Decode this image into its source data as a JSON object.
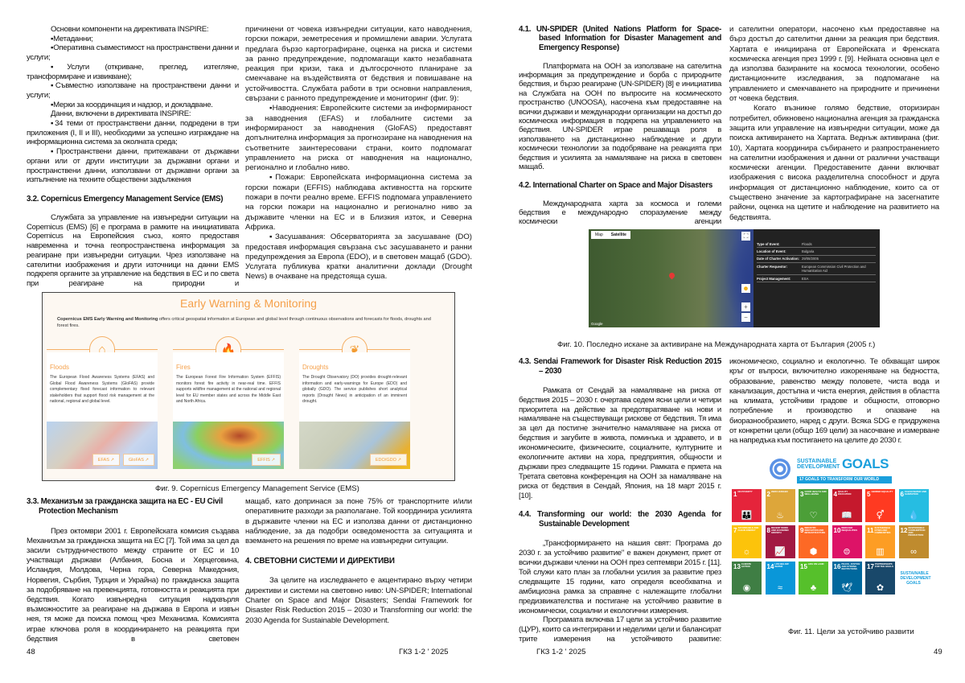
{
  "left_page": {
    "col1_top": [
      {
        "t": "Основни компоненти на директивата INSPIRE:"
      },
      {
        "t": "▪Метаданни;"
      },
      {
        "t": "▪Оперативна съвместимост на пространствени данни и услуги;"
      },
      {
        "t": "▪Услуги (откриване, преглед, изтегляне, трансформиране и извикване);"
      },
      {
        "t": "▪Съвместно използване на пространствени данни и услуги;"
      },
      {
        "t": "▪Мерки за координация и надзор, и докладване."
      },
      {
        "t": "Данни, включени в директивата INSPIRE:"
      },
      {
        "t": "▪34 теми от пространствени данни, подредени в три приложения (I, II и III), необходими за успешно изграждане на информационна система за околната среда;"
      },
      {
        "t": "▪Пространствени данни, притежавани от държавни органи или от други институции за държавни органи и пространствени данни, използвани от държавни органи за изпълнение на техните обществени задължения"
      }
    ],
    "h32": "3.2. Copernicus Emergency Management Service (EMS)",
    "p32": "Службата за управление на извънредни ситуации на Copernicus (EMS) [6] е програма в рамките на инициативата Copernicus на Европейския съюз, която предоставя навременна и точна геопространствена информация за реагиране при извънредни ситуации. Чрез използване на сателитни изображения и други източници на данни EMS подкрепя органите за управление на бедствия в ЕС и по света при реагиране на природни и",
    "col2_top": [
      "причинени от човека извънредни ситуации, като наводнения, горски пожари, земетресения и промишлени аварии. Услугата предлага бързо картографиране, оценка на риска и системи за ранно предупреждение, подпомагащи както незабавната реакция при кризи, така и дългосрочното планиране за смекчаване на въздействията от бедствия и повишаване на устойчивостта. Службата работи в три основни направления, свързани с ранното предупреждение и мониторинг (фиг. 9):",
      "▪Наводнения: Европейските системи за информираност за наводнения (EFAS) и глобалните системи за информираност за наводнения (GloFAS) предоставят допълнителна информация за прогнозиране на наводнения на съответните заинтересовани страни, които подпомагат управлението на риска от наводнения на национално, регионално и глобално ниво.",
      "▪Пожари: Европейската информационна система за горски пожари (EFFIS) наблюдава активността на горските пожари в почти реално време. EFFIS подпомага управлението на горски пожари на национално и регионално ниво за държавите членки на ЕС и в Близкия изток, и Северна Африка.",
      "▪Засушавания: Обсерваторията за засушаване (DO) предоставя информация свързана със засушаването и ранни предупреждения за Европа (EDO), и в световен мащаб (GDO). Услугата публикува кратки аналитични доклади (Drought News) в очакване на предстояща суша."
    ],
    "fig9": {
      "title": "Early Warning & Monitoring",
      "intro_bold": "Copernicus EMS Early Warning and Monitoring",
      "intro": " offers critical geospatial information at European and global level through continuous observations and forecasts for floods, droughts and forest fires.",
      "cards": [
        {
          "title": "Floods",
          "icon": "flood-house-icon",
          "text": "The European Flood Awareness Systems (EFAS) and Global Flood Awareness Systems (GloFAS) provide complementary flood forecast information to relevant stakeholders that support flood risk management at the national, regional and global level.",
          "buttons": [
            "EFAS ↗",
            "GloFAS ↗"
          ]
        },
        {
          "title": "Fires",
          "icon": "fire-icon",
          "text": "The European Forest Fire Information System (EFFIS) monitors forest fire activity in near-real time. EFFIS supports wildfire management at the national and regional level for EU member states and across the Middle East and North Africa.",
          "buttons": [
            "EFFIS ↗"
          ]
        },
        {
          "title": "Droughts",
          "icon": "drought-plant-icon",
          "text": "The Drought Observatory (DO) provides drought-relevant information and early-warnings for Europe (EDO) and globally (GDO). The service publishes short analytical reports (Drought News) in anticipation of an imminent drought.",
          "buttons": [
            "EDO/GDO ↗"
          ]
        }
      ],
      "accent": "#f5a04a",
      "caption": "Фиг. 9. Copernicus Emergency Management Service (EMS)"
    },
    "h33": "3.3. Механизъм за гражданска защита на ЕС - EU Civil Protection Mechanism",
    "p33": "През октомври 2001 г. Европейската комисия създава Механизъм за гражданска защита на ЕС [7]. Той има за цел да засили сътрудничеството между страните от ЕС и 10 участващи държави (Албания, Босна и Херцеговина, Исландия, Молдова, Черна гора, Северна Македония, Норвегия, Сърбия, Турция и Украйна) по гражданска защита за подобряване на превенцията, готовността и реакцията при бедствия. Когато извънредна ситуация надхвърля възможностите за реагиране на държава в Европа и извън нея, тя може да поиска помощ чрез Механизма. Комисията играе ключова роля в координирането на реакцията при бедствия в световен",
    "p33b": "мащаб, като допринася за поне 75% от транспортните и/или оперативните разходи за разполагане. Той координира усилията в държавите членки на ЕС и използва данни от дистанционно наблюдение, за да подобри осведомеността за ситуацията и вземането на решения по време на извънредни ситуации.",
    "h4": "4. СВЕТОВНИ СИСТЕМИ И ДИРЕКТИВИ",
    "p4": "За целите на изследването е акцентирано върху четири директиви и системи на световно ниво: UN-SPIDER; International Charter on Space and Major Disasters; Sendai Framework for Disaster Risk Reduction 2015 – 2030 и Transforming our world: the 2030 Agenda for Sustainable Development.",
    "page_number": "48",
    "journal": "ГКЗ 1-2 ' 2025"
  },
  "right_page": {
    "h41": "4.1. UN-SPIDER (United Nations Platform for Space-based Information for Disaster Management and Emergency Response)",
    "p41": "Платформата на ООН за използване на сателитна информация за предупреждение и борба с природните бедствия, и бързо реагиране (UN-SPIDER) [8] е инициатива на Службата на ООН по въпросите на космическото пространство (UNOOSA), насочена към предоставяне на всички държави и международни организации на достъп до космическа информация в подкрепа на управлението на бедствия. UN-SPIDER играе решаваща роля в използването на дистанционно наблюдение и други космически технологии за подобряване на реакцията при бедствия и усилията за намаляване на риска в световен мащаб.",
    "h42": "4.2. International Charter on Space and Major Disasters",
    "p42": "Международната харта за космоса и големи бедствия е международно споразумение между космически агенции",
    "col2_top": [
      "и сателитни оператори, насочено към предоставяне на бърз достъп до сателитни данни за реакция при бедствия. Хартата е инициирана от Европейската и Френската космическа агенция през 1999 г. [9]. Нейната основна цел е да използва базираните на космоса технологии, особено дистанционните изследвания, за подпомагане на управлението и смекчаването на природните и причинени от човека бедствия.",
      "Когато възникне голямо бедствие, оторизиран потребител, обикновено национална агенция за гражданска защита или управление на извънредни ситуации, може да поиска активирането на Хартата. Веднъж активирана (фиг. 10), Хартата координира събирането и разпространението на сателитни изображения и данни от различни участващи космически агенции. Предоставените данни включват изображения с висока разделителна способност и друга информация от дистанционно наблюдение, които са от съществено значение за картографиране на засегнатите райони, оценка на щетите и наблюдение на развитието на бедствията."
    ],
    "fig10": {
      "map_tabs": [
        "Map",
        "Satellite"
      ],
      "map_credit": "Google",
      "info": [
        {
          "k": "Type of Event:",
          "v": "Floods"
        },
        {
          "k": "Location of Event:",
          "v": "Bulgaria"
        },
        {
          "k": "Date of Charter Activation:",
          "v": "29/08/2005"
        },
        {
          "k": "Charter Requestor:",
          "v": "European Commission Civil Protection and Humanitarian Aid"
        },
        {
          "k": "Project Management:",
          "v": "ESA"
        }
      ],
      "caption": "Фиг. 10. Последно искане за активиране на Международната харта от България (2005 г.)"
    },
    "h43": "4.3. Sendai Framework for Disaster Risk Reduction 2015 – 2030",
    "p43": "Рамката от Сендай за намаляване на риска от бедствия 2015 – 2030 г. очертава седем ясни цели и четири приоритета на действие за предотвратяване на нови и намаляване на съществуващи рискове от бедствия. Тя има за цел да постигне значително намаляване на риска от бедствия и загубите в живота, поминъка и здравето, и в икономическите, физическите, социалните, културните и екологичните активи на хора, предприятия, общности и държави през следващите 15 години. Рамката е приета на Третата световна конференция на ООН за намаляване на риска от бедствия в Сендай, Япония, на 18 март 2015 г. [10].",
    "h44": "4.4. Transforming our world: the 2030 Agenda for Sustainable Development",
    "p44": "„Трансформирането на нашия свят: Програма до 2030 г. за устойчиво развитие\" е важен документ, приет от всички държави членки на ООН през септември 2015 г. [11]. Той служи като план за глобални усилия за развитие през следващите 15 години, като определя всеобхватна и амбициозна рамка за справяне с належащите глобални предизвикателства и постигане на устойчиво развитие в икономически, социални и екологични измерения.",
    "p44b": "Програмата включва 17 цели за устойчиво развитие (ЦУР), които са интегрирани и неделими цели и балансират трите измерения на устойчивото развитие:",
    "p44c": "икономическо, социално и екологично. Те обхващат широк кръг от въпроси, включително изкореняване на бедността, образование, равенство между половете, чиста вода и канализация, достъпна и чиста енергия, действия в областта на климата, устойчиви градове и общности, отговорно потребление и производство и опазване на биоразнообразието, наред с други. Всяка SDG е придружена от конкретни цели (общо 169 цели) за насочване и измерване на напредъка към постигането на целите до 2030 г.",
    "sdg": {
      "title": "SUSTAINABLE DEVELOPMENT",
      "goals_word": "GOALS",
      "banner": "17 GOALS TO TRANSFORM OUR WORLD",
      "tiles": [
        {
          "n": "1",
          "l": "NO POVERTY",
          "c": "#E5243B",
          "g": "👪"
        },
        {
          "n": "2",
          "l": "ZERO HUNGER",
          "c": "#DDA63A",
          "g": "♨"
        },
        {
          "n": "3",
          "l": "GOOD HEALTH AND WELL-BEING",
          "c": "#4C9F38",
          "g": "♡"
        },
        {
          "n": "4",
          "l": "QUALITY EDUCATION",
          "c": "#C5192D",
          "g": "📖"
        },
        {
          "n": "5",
          "l": "GENDER EQUALITY",
          "c": "#FF3A21",
          "g": "⚥"
        },
        {
          "n": "6",
          "l": "CLEAN WATER AND SANITATION",
          "c": "#26BDE2",
          "g": "💧"
        },
        {
          "n": "7",
          "l": "AFFORDABLE AND CLEAN ENERGY",
          "c": "#FCC30B",
          "g": "☼"
        },
        {
          "n": "8",
          "l": "DECENT WORK AND ECONOMIC GROWTH",
          "c": "#A21942",
          "g": "📈"
        },
        {
          "n": "9",
          "l": "INDUSTRY, INNOVATION AND INFRASTRUCTURE",
          "c": "#FD6925",
          "g": "⬢"
        },
        {
          "n": "10",
          "l": "REDUCED INEQUALITIES",
          "c": "#DD1367",
          "g": "⊜"
        },
        {
          "n": "11",
          "l": "SUSTAINABLE CITIES AND COMMUNITIES",
          "c": "#FD9D24",
          "g": "▥"
        },
        {
          "n": "12",
          "l": "RESPONSIBLE CONSUMPTION AND PRODUCTION",
          "c": "#BF8B2E",
          "g": "∞"
        },
        {
          "n": "13",
          "l": "CLIMATE ACTION",
          "c": "#3F7E44",
          "g": "◉"
        },
        {
          "n": "14",
          "l": "LIFE BELOW WATER",
          "c": "#0A97D9",
          "g": "≈"
        },
        {
          "n": "15",
          "l": "LIFE ON LAND",
          "c": "#56C02B",
          "g": "♣"
        },
        {
          "n": "16",
          "l": "PEACE, JUSTICE AND STRONG INSTITUTIONS",
          "c": "#00689D",
          "g": "🕊"
        },
        {
          "n": "17",
          "l": "PARTNERSHIPS FOR THE GOALS",
          "c": "#19486A",
          "g": "✿"
        }
      ],
      "logo_tile": "SUSTAINABLE DEVELOPMENT GOALS"
    },
    "sdg_caption": "Фиг. 11. Цели за устойчиво развити",
    "journal": "ГКЗ 1-2 ' 2025",
    "page_number": "49"
  }
}
